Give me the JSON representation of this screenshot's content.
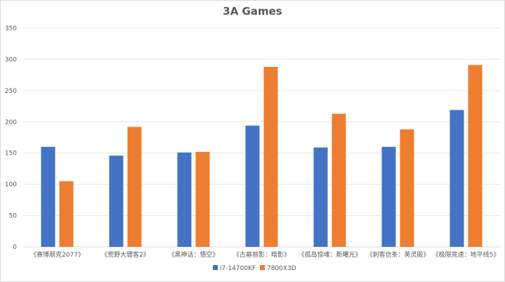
{
  "chart_data": {
    "type": "bar",
    "title": "3A Games",
    "xlabel": "",
    "ylabel": "",
    "ylim": [
      0,
      350
    ],
    "yticks": [
      0,
      50,
      100,
      150,
      200,
      250,
      300,
      350
    ],
    "grid": true,
    "legend_position": "bottom",
    "categories": [
      "《赛博朋克2077》",
      "《荒野大镖客2》",
      "《黑神话：悟空》",
      "《古墓丽影：暗影》",
      "《孤岛惊魂：新曙光》",
      "《刺客信条：英灵殿》",
      "《极限竞速：地平线5》"
    ],
    "series": [
      {
        "name": "i7-14700KF",
        "color": "#4472c4",
        "values": [
          160,
          146,
          151,
          194,
          159,
          160,
          219
        ]
      },
      {
        "name": "7800X3D",
        "color": "#ed7d31",
        "values": [
          105,
          192,
          152,
          288,
          213,
          188,
          291
        ]
      }
    ]
  }
}
